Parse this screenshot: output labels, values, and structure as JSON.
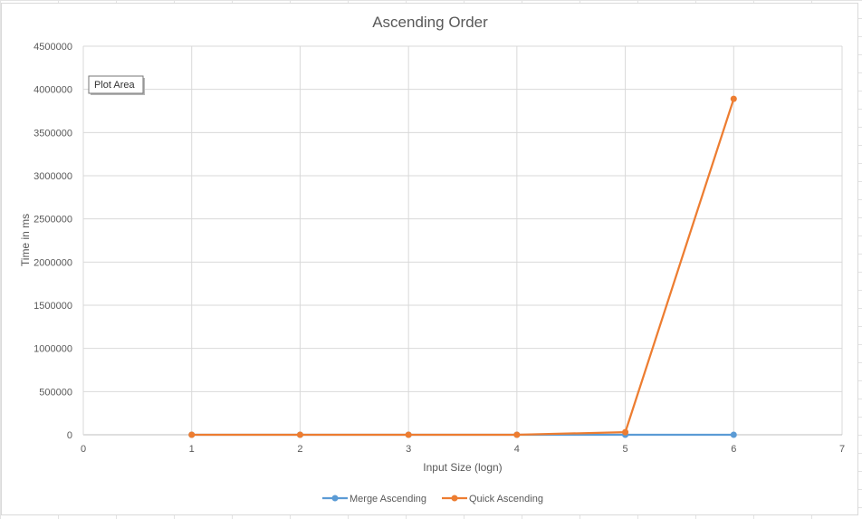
{
  "tooltip": {
    "label": "Plot Area"
  },
  "chart_data": {
    "type": "line",
    "title": "Ascending Order",
    "xlabel": "Input Size (logn)",
    "ylabel": "Time in ms",
    "xlim": [
      0,
      7
    ],
    "ylim": [
      0,
      4500000
    ],
    "x_ticks": [
      0,
      1,
      2,
      3,
      4,
      5,
      6,
      7
    ],
    "y_ticks": [
      0,
      500000,
      1000000,
      1500000,
      2000000,
      2500000,
      3000000,
      3500000,
      4000000,
      4500000
    ],
    "grid": true,
    "legend_position": "bottom",
    "series": [
      {
        "name": "Merge Ascending",
        "color": "#5b9bd5",
        "x": [
          1,
          2,
          3,
          4,
          5,
          6
        ],
        "values": [
          0,
          0,
          0,
          0,
          0,
          0
        ]
      },
      {
        "name": "Quick Ascending",
        "color": "#ed7d31",
        "x": [
          1,
          2,
          3,
          4,
          5,
          6
        ],
        "values": [
          0,
          0,
          0,
          0,
          30000,
          3890000
        ]
      }
    ]
  }
}
